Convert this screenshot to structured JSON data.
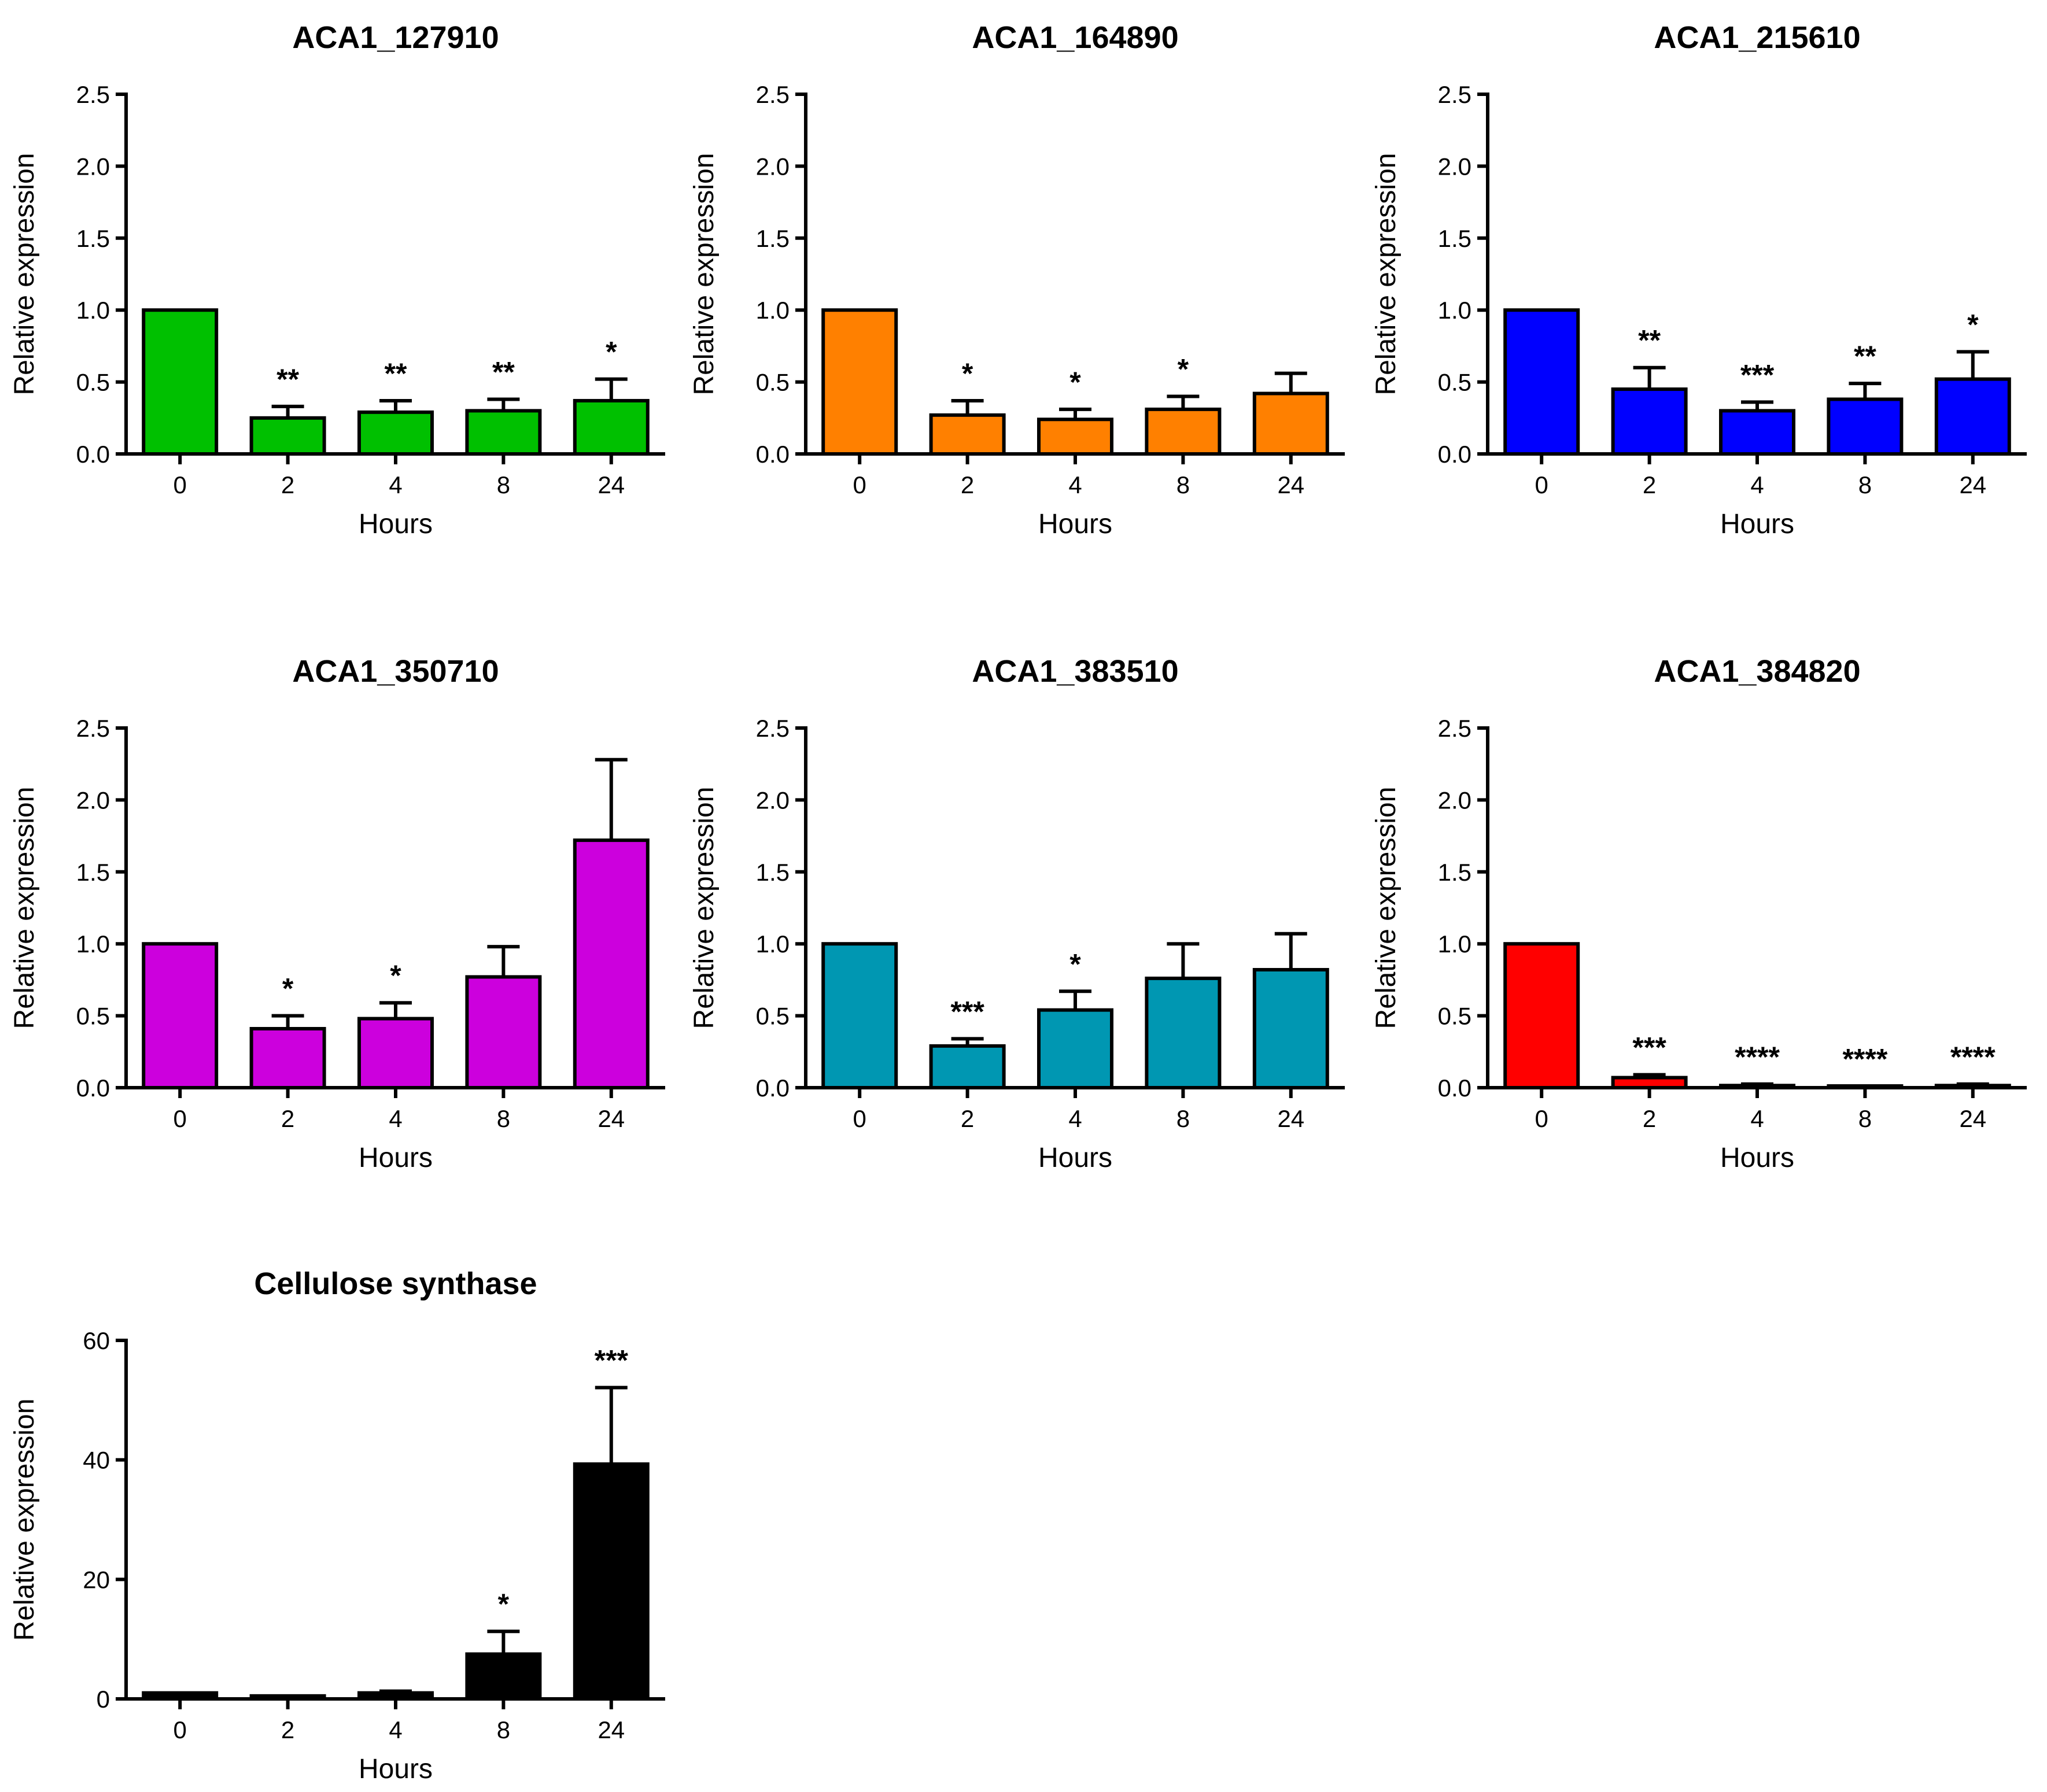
{
  "chart_data": [
    {
      "type": "bar",
      "title": "ACA1_127910",
      "categories": [
        "0",
        "2",
        "4",
        "8",
        "24"
      ],
      "values": [
        1.0,
        0.25,
        0.29,
        0.3,
        0.37
      ],
      "errors": [
        0,
        0.08,
        0.08,
        0.08,
        0.15
      ],
      "significance": [
        "",
        "**",
        "**",
        "**",
        "*"
      ],
      "color": "#00C000",
      "xlabel": "Hours",
      "ylabel": "Relative expression",
      "ylim": [
        0,
        2.5
      ],
      "yticks": [
        "0.0",
        "0.5",
        "1.0",
        "1.5",
        "2.0",
        "2.5"
      ],
      "ytick_values": [
        0,
        0.5,
        1.0,
        1.5,
        2.0,
        2.5
      ]
    },
    {
      "type": "bar",
      "title": "ACA1_164890",
      "categories": [
        "0",
        "2",
        "4",
        "8",
        "24"
      ],
      "values": [
        1.0,
        0.27,
        0.24,
        0.31,
        0.42
      ],
      "errors": [
        0,
        0.1,
        0.07,
        0.09,
        0.14
      ],
      "significance": [
        "",
        "*",
        "*",
        "*",
        ""
      ],
      "color": "#FF8000",
      "xlabel": "Hours",
      "ylabel": "Relative expression",
      "ylim": [
        0,
        2.5
      ],
      "yticks": [
        "0.0",
        "0.5",
        "1.0",
        "1.5",
        "2.0",
        "2.5"
      ],
      "ytick_values": [
        0,
        0.5,
        1.0,
        1.5,
        2.0,
        2.5
      ]
    },
    {
      "type": "bar",
      "title": "ACA1_215610",
      "categories": [
        "0",
        "2",
        "4",
        "8",
        "24"
      ],
      "values": [
        1.0,
        0.45,
        0.3,
        0.38,
        0.52
      ],
      "errors": [
        0,
        0.15,
        0.06,
        0.11,
        0.19
      ],
      "significance": [
        "",
        "**",
        "***",
        "**",
        "*"
      ],
      "color": "#0000FF",
      "xlabel": "Hours",
      "ylabel": "Relative expression",
      "ylim": [
        0,
        2.5
      ],
      "yticks": [
        "0.0",
        "0.5",
        "1.0",
        "1.5",
        "2.0",
        "2.5"
      ],
      "ytick_values": [
        0,
        0.5,
        1.0,
        1.5,
        2.0,
        2.5
      ]
    },
    {
      "type": "bar",
      "title": "ACA1_350710",
      "categories": [
        "0",
        "2",
        "4",
        "8",
        "24"
      ],
      "values": [
        1.0,
        0.41,
        0.48,
        0.77,
        1.72
      ],
      "errors": [
        0,
        0.09,
        0.11,
        0.21,
        0.56
      ],
      "significance": [
        "",
        "*",
        "*",
        "",
        ""
      ],
      "color": "#CC00DD",
      "xlabel": "Hours",
      "ylabel": "Relative expression",
      "ylim": [
        0,
        2.5
      ],
      "yticks": [
        "0.0",
        "0.5",
        "1.0",
        "1.5",
        "2.0",
        "2.5"
      ],
      "ytick_values": [
        0,
        0.5,
        1.0,
        1.5,
        2.0,
        2.5
      ]
    },
    {
      "type": "bar",
      "title": "ACA1_383510",
      "categories": [
        "0",
        "2",
        "4",
        "8",
        "24"
      ],
      "values": [
        1.0,
        0.29,
        0.54,
        0.76,
        0.82
      ],
      "errors": [
        0,
        0.05,
        0.13,
        0.24,
        0.25
      ],
      "significance": [
        "",
        "***",
        "*",
        "",
        ""
      ],
      "color": "#0097B2",
      "xlabel": "Hours",
      "ylabel": "Relative expression",
      "ylim": [
        0,
        2.5
      ],
      "yticks": [
        "0.0",
        "0.5",
        "1.0",
        "1.5",
        "2.0",
        "2.5"
      ],
      "ytick_values": [
        0,
        0.5,
        1.0,
        1.5,
        2.0,
        2.5
      ]
    },
    {
      "type": "bar",
      "title": "ACA1_384820",
      "categories": [
        "0",
        "2",
        "4",
        "8",
        "24"
      ],
      "values": [
        1.0,
        0.07,
        0.015,
        0.005,
        0.015
      ],
      "errors": [
        0,
        0.02,
        0.01,
        0.005,
        0.01
      ],
      "significance": [
        "",
        "***",
        "****",
        "****",
        "****"
      ],
      "color": "#FF0000",
      "xlabel": "Hours",
      "ylabel": "Relative expression",
      "ylim": [
        0,
        2.5
      ],
      "yticks": [
        "0.0",
        "0.5",
        "1.0",
        "1.5",
        "2.0",
        "2.5"
      ],
      "ytick_values": [
        0,
        0.5,
        1.0,
        1.5,
        2.0,
        2.5
      ]
    },
    {
      "type": "bar",
      "title": "Cellulose synthase",
      "categories": [
        "0",
        "2",
        "4",
        "8",
        "24"
      ],
      "values": [
        1.0,
        0.5,
        1.0,
        7.5,
        39.3
      ],
      "errors": [
        0,
        0,
        0.3,
        3.8,
        12.8
      ],
      "significance": [
        "",
        "",
        "",
        "*",
        "***"
      ],
      "color": "#000000",
      "xlabel": "Hours",
      "ylabel": "Relative expression",
      "ylim": [
        0,
        60
      ],
      "yticks": [
        "0",
        "20",
        "40",
        "60"
      ],
      "ytick_values": [
        0,
        20,
        40,
        60
      ]
    }
  ]
}
